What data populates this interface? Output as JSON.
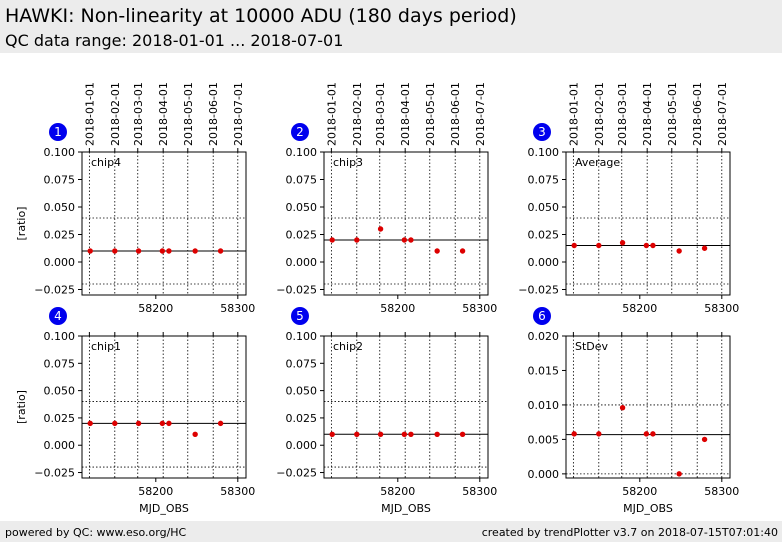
{
  "header": {
    "title": "HAWKI: Non-linearity at 10000 ADU (180 days period)",
    "subtitle": "QC data range: 2018-01-01 ... 2018-07-01"
  },
  "footer": {
    "left": "powered by QC: www.eso.org/HC",
    "right": "created by trendPlotter v3.7 on 2018-07-15T07:01:40"
  },
  "colors": {
    "point": "#dd0000",
    "badge": "#0000ee",
    "header_bg": "#ececec"
  },
  "top_date_ticks": [
    {
      "label": "2018-01-01",
      "mjd": 58119
    },
    {
      "label": "2018-02-01",
      "mjd": 58150
    },
    {
      "label": "2018-03-01",
      "mjd": 58178
    },
    {
      "label": "2018-04-01",
      "mjd": 58209
    },
    {
      "label": "2018-05-01",
      "mjd": 58239
    },
    {
      "label": "2018-06-01",
      "mjd": 58270
    },
    {
      "label": "2018-07-01",
      "mjd": 58300
    }
  ],
  "chart_data": [
    {
      "type": "scatter",
      "panel": "1",
      "label": "chip4",
      "ylabel": "[ratio]",
      "xlabel": "",
      "xlim": [
        58110,
        58310
      ],
      "ylim": [
        -0.03,
        0.1
      ],
      "yticks": [
        0.1,
        0.075,
        0.05,
        0.025,
        0.0,
        -0.025
      ],
      "ytick_labels": [
        "0.100",
        "0.075",
        "0.050",
        "0.025",
        "0.000",
        "−0.025"
      ],
      "xticks": [
        58200,
        58300
      ],
      "xtick_labels": [
        "58200",
        "58300"
      ],
      "ref_line": 0.01,
      "dotted_lines": [
        0.04,
        -0.02
      ],
      "x": [
        58120,
        58150,
        58179,
        58208,
        58216,
        58248,
        58279
      ],
      "y": [
        0.01,
        0.01,
        0.01,
        0.01,
        0.01,
        0.01,
        0.01
      ]
    },
    {
      "type": "scatter",
      "panel": "2",
      "label": "chip3",
      "ylabel": "",
      "xlabel": "",
      "xlim": [
        58110,
        58310
      ],
      "ylim": [
        -0.03,
        0.1
      ],
      "yticks": [
        0.1,
        0.075,
        0.05,
        0.025,
        0.0,
        -0.025
      ],
      "ytick_labels": [
        "0.100",
        "0.075",
        "0.050",
        "0.025",
        "0.000",
        "−0.025"
      ],
      "xticks": [
        58200,
        58300
      ],
      "xtick_labels": [
        "58200",
        "58300"
      ],
      "ref_line": 0.02,
      "dotted_lines": [
        0.04,
        -0.02
      ],
      "x": [
        58120,
        58150,
        58179,
        58208,
        58216,
        58248,
        58279
      ],
      "y": [
        0.02,
        0.02,
        0.03,
        0.02,
        0.02,
        0.01,
        0.01
      ]
    },
    {
      "type": "scatter",
      "panel": "3",
      "label": "Average",
      "ylabel": "",
      "xlabel": "",
      "xlim": [
        58110,
        58310
      ],
      "ylim": [
        -0.03,
        0.1
      ],
      "yticks": [
        0.1,
        0.075,
        0.05,
        0.025,
        0.0,
        -0.025
      ],
      "ytick_labels": [
        "0.100",
        "0.075",
        "0.050",
        "0.025",
        "0.000",
        "−0.025"
      ],
      "xticks": [
        58200,
        58300
      ],
      "xtick_labels": [
        "58200",
        "58300"
      ],
      "ref_line": 0.015,
      "dotted_lines": [
        0.04,
        -0.02
      ],
      "x": [
        58120,
        58150,
        58179,
        58208,
        58216,
        58248,
        58279
      ],
      "y": [
        0.015,
        0.015,
        0.0175,
        0.015,
        0.015,
        0.01,
        0.0125
      ]
    },
    {
      "type": "scatter",
      "panel": "4",
      "label": "chip1",
      "ylabel": "[ratio]",
      "xlabel": "MJD_OBS",
      "xlim": [
        58110,
        58310
      ],
      "ylim": [
        -0.03,
        0.1
      ],
      "yticks": [
        0.1,
        0.075,
        0.05,
        0.025,
        0.0,
        -0.025
      ],
      "ytick_labels": [
        "0.100",
        "0.075",
        "0.050",
        "0.025",
        "0.000",
        "−0.025"
      ],
      "xticks": [
        58200,
        58300
      ],
      "xtick_labels": [
        "58200",
        "58300"
      ],
      "ref_line": 0.02,
      "dotted_lines": [
        0.04,
        -0.02
      ],
      "x": [
        58120,
        58150,
        58179,
        58208,
        58216,
        58248,
        58279
      ],
      "y": [
        0.02,
        0.02,
        0.02,
        0.02,
        0.02,
        0.01,
        0.02
      ]
    },
    {
      "type": "scatter",
      "panel": "5",
      "label": "chip2",
      "ylabel": "",
      "xlabel": "MJD_OBS",
      "xlim": [
        58110,
        58310
      ],
      "ylim": [
        -0.03,
        0.1
      ],
      "yticks": [
        0.1,
        0.075,
        0.05,
        0.025,
        0.0,
        -0.025
      ],
      "ytick_labels": [
        "0.100",
        "0.075",
        "0.050",
        "0.025",
        "0.000",
        "−0.025"
      ],
      "xticks": [
        58200,
        58300
      ],
      "xtick_labels": [
        "58200",
        "58300"
      ],
      "ref_line": 0.01,
      "dotted_lines": [
        0.04,
        -0.02
      ],
      "x": [
        58120,
        58150,
        58179,
        58208,
        58216,
        58248,
        58279
      ],
      "y": [
        0.01,
        0.01,
        0.01,
        0.01,
        0.01,
        0.01,
        0.01
      ]
    },
    {
      "type": "scatter",
      "panel": "6",
      "label": "StDev",
      "ylabel": "",
      "xlabel": "MJD_OBS",
      "xlim": [
        58110,
        58310
      ],
      "ylim": [
        -0.0006,
        0.02
      ],
      "yticks": [
        0.02,
        0.015,
        0.01,
        0.005,
        0.0
      ],
      "ytick_labels": [
        "0.020",
        "0.015",
        "0.010",
        "0.005",
        "0.000"
      ],
      "xticks": [
        58200,
        58300
      ],
      "xtick_labels": [
        "58200",
        "58300"
      ],
      "ref_line": 0.0057,
      "dotted_lines": [
        0.01,
        0.0
      ],
      "x": [
        58120,
        58150,
        58179,
        58208,
        58216,
        58248,
        58279
      ],
      "y": [
        0.0058,
        0.0058,
        0.0096,
        0.0058,
        0.0058,
        0.0,
        0.005
      ]
    }
  ]
}
